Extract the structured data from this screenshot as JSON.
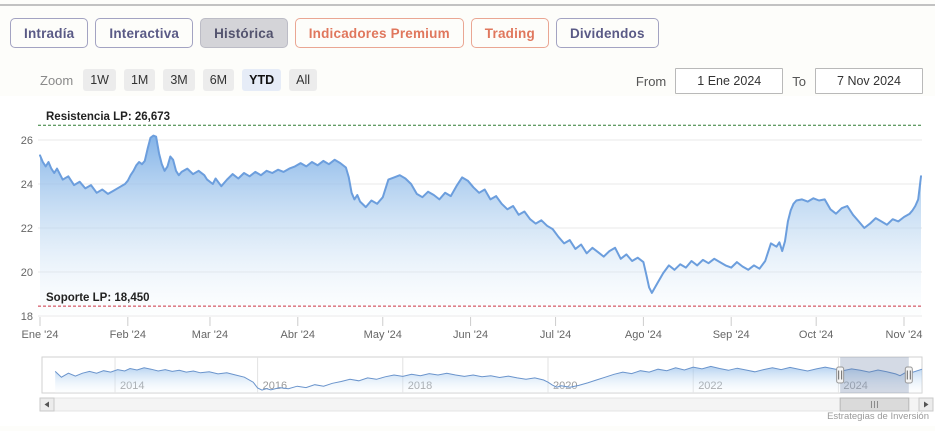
{
  "colors": {
    "accent_purple": "#5a5a86",
    "accent_salmon": "#e0775d",
    "active_tab_bg": "#d4d4d8",
    "ytd_active_bg": "#e6ecf7",
    "price_line": "#6c9edd",
    "navigator_line": "#6a94cc",
    "resistance_green": "#2f7d32",
    "support_red": "#cc3344"
  },
  "tabs": [
    {
      "label": "Intradía",
      "variant": "default",
      "active": false
    },
    {
      "label": "Interactiva",
      "variant": "default",
      "active": false
    },
    {
      "label": "Histórica",
      "variant": "default",
      "active": true
    },
    {
      "label": "Indicadores Premium",
      "variant": "premium",
      "active": false
    },
    {
      "label": "Trading",
      "variant": "premium",
      "active": false
    },
    {
      "label": "Dividendos",
      "variant": "default",
      "active": false
    }
  ],
  "zoom_controls": {
    "label": "Zoom",
    "active": "YTD",
    "buttons": [
      "1W",
      "1M",
      "3M",
      "6M",
      "YTD",
      "All"
    ]
  },
  "date_range": {
    "from_label": "From",
    "from_value": "1 Ene 2024",
    "to_label": "To",
    "to_value": "7 Nov 2024"
  },
  "footer": {
    "credit": "Estrategias de Inversión"
  },
  "chart_data": [
    {
      "type": "area",
      "name": "price-history-ytd-2024",
      "title": "",
      "x_unit": "day_of_2024 (0 = 1 Ene 2024, 311 = 7 Nov 2024)",
      "ylim": [
        18,
        27.3
      ],
      "yticks": [
        18,
        20,
        22,
        24,
        26
      ],
      "grid": true,
      "legend": "none",
      "line_color": "#6c9edd",
      "month_ticks": {
        "days": [
          0,
          31,
          60,
          91,
          121,
          152,
          182,
          213,
          244,
          274,
          305
        ],
        "labels": [
          "Ene '24",
          "Feb '24",
          "Mar '24",
          "Abr '24",
          "May '24",
          "Jun '24",
          "Jul '24",
          "Ago '24",
          "Sep '24",
          "Oct '24",
          "Nov '24"
        ]
      },
      "annotations": [
        {
          "name": "resistance",
          "type": "hline",
          "value": 26.673,
          "label": "Resistencia LP: 26,673",
          "color": "#2f7d32",
          "style": "dotted"
        },
        {
          "name": "support",
          "type": "hline",
          "value": 18.45,
          "label": "Soporte LP: 18,450",
          "color": "#cc3344",
          "style": "dotted"
        }
      ],
      "points": [
        [
          0,
          25.3
        ],
        [
          1,
          25.0
        ],
        [
          2,
          24.8
        ],
        [
          3,
          25.0
        ],
        [
          4,
          24.7
        ],
        [
          5,
          24.5
        ],
        [
          6,
          24.7
        ],
        [
          8,
          24.2
        ],
        [
          10,
          24.35
        ],
        [
          12,
          23.95
        ],
        [
          14,
          24.1
        ],
        [
          16,
          23.8
        ],
        [
          18,
          23.95
        ],
        [
          20,
          23.6
        ],
        [
          22,
          23.75
        ],
        [
          24,
          23.55
        ],
        [
          26,
          23.7
        ],
        [
          28,
          23.85
        ],
        [
          30,
          24.0
        ],
        [
          31,
          24.15
        ],
        [
          32,
          24.4
        ],
        [
          33,
          24.6
        ],
        [
          34,
          24.85
        ],
        [
          35,
          25.0
        ],
        [
          36,
          24.9
        ],
        [
          37,
          25.05
        ],
        [
          38,
          25.6
        ],
        [
          39,
          26.1
        ],
        [
          40,
          26.2
        ],
        [
          41,
          26.15
        ],
        [
          42,
          25.4
        ],
        [
          43,
          24.9
        ],
        [
          44,
          24.6
        ],
        [
          45,
          24.8
        ],
        [
          46,
          25.25
        ],
        [
          47,
          25.1
        ],
        [
          48,
          24.6
        ],
        [
          49,
          24.4
        ],
        [
          50,
          24.55
        ],
        [
          52,
          24.7
        ],
        [
          54,
          24.45
        ],
        [
          56,
          24.6
        ],
        [
          58,
          24.4
        ],
        [
          59,
          24.2
        ],
        [
          61,
          24.0
        ],
        [
          62,
          24.25
        ],
        [
          64,
          23.9
        ],
        [
          66,
          24.2
        ],
        [
          68,
          24.45
        ],
        [
          70,
          24.25
        ],
        [
          72,
          24.5
        ],
        [
          74,
          24.35
        ],
        [
          76,
          24.55
        ],
        [
          78,
          24.4
        ],
        [
          80,
          24.6
        ],
        [
          82,
          24.5
        ],
        [
          84,
          24.65
        ],
        [
          86,
          24.55
        ],
        [
          88,
          24.7
        ],
        [
          90,
          24.8
        ],
        [
          92,
          24.95
        ],
        [
          94,
          24.8
        ],
        [
          96,
          25.0
        ],
        [
          98,
          24.85
        ],
        [
          100,
          25.05
        ],
        [
          102,
          24.9
        ],
        [
          104,
          25.1
        ],
        [
          106,
          24.95
        ],
        [
          108,
          24.75
        ],
        [
          109,
          24.3
        ],
        [
          110,
          23.6
        ],
        [
          111,
          23.3
        ],
        [
          112,
          23.5
        ],
        [
          113,
          23.2
        ],
        [
          115,
          22.95
        ],
        [
          117,
          23.25
        ],
        [
          119,
          23.1
        ],
        [
          121,
          23.4
        ],
        [
          123,
          24.2
        ],
        [
          125,
          24.3
        ],
        [
          127,
          24.4
        ],
        [
          129,
          24.25
        ],
        [
          131,
          24.0
        ],
        [
          133,
          23.55
        ],
        [
          135,
          23.4
        ],
        [
          137,
          23.65
        ],
        [
          139,
          23.5
        ],
        [
          141,
          23.3
        ],
        [
          143,
          23.6
        ],
        [
          145,
          23.45
        ],
        [
          147,
          23.9
        ],
        [
          149,
          24.3
        ],
        [
          151,
          24.15
        ],
        [
          153,
          23.85
        ],
        [
          155,
          23.6
        ],
        [
          157,
          23.75
        ],
        [
          159,
          23.3
        ],
        [
          161,
          23.45
        ],
        [
          163,
          23.1
        ],
        [
          165,
          22.85
        ],
        [
          167,
          23.0
        ],
        [
          169,
          22.6
        ],
        [
          171,
          22.75
        ],
        [
          173,
          22.4
        ],
        [
          175,
          22.2
        ],
        [
          177,
          22.35
        ],
        [
          179,
          22.1
        ],
        [
          181,
          21.95
        ],
        [
          183,
          21.6
        ],
        [
          185,
          21.3
        ],
        [
          187,
          21.45
        ],
        [
          189,
          21.05
        ],
        [
          191,
          21.25
        ],
        [
          193,
          20.85
        ],
        [
          195,
          21.1
        ],
        [
          197,
          20.9
        ],
        [
          199,
          20.7
        ],
        [
          201,
          20.95
        ],
        [
          203,
          21.1
        ],
        [
          205,
          20.6
        ],
        [
          207,
          20.8
        ],
        [
          209,
          20.5
        ],
        [
          211,
          20.65
        ],
        [
          213,
          20.45
        ],
        [
          214,
          19.9
        ],
        [
          215,
          19.3
        ],
        [
          216,
          19.05
        ],
        [
          218,
          19.5
        ],
        [
          220,
          19.95
        ],
        [
          222,
          20.3
        ],
        [
          224,
          20.1
        ],
        [
          226,
          20.35
        ],
        [
          228,
          20.2
        ],
        [
          230,
          20.5
        ],
        [
          232,
          20.3
        ],
        [
          234,
          20.55
        ],
        [
          236,
          20.4
        ],
        [
          238,
          20.6
        ],
        [
          240,
          20.45
        ],
        [
          242,
          20.3
        ],
        [
          244,
          20.2
        ],
        [
          246,
          20.45
        ],
        [
          248,
          20.25
        ],
        [
          250,
          20.1
        ],
        [
          252,
          20.3
        ],
        [
          254,
          20.15
        ],
        [
          256,
          20.5
        ],
        [
          258,
          21.3
        ],
        [
          260,
          21.15
        ],
        [
          261,
          21.35
        ],
        [
          262,
          20.95
        ],
        [
          263,
          21.4
        ],
        [
          264,
          22.3
        ],
        [
          265,
          22.8
        ],
        [
          266,
          23.1
        ],
        [
          267,
          23.25
        ],
        [
          269,
          23.3
        ],
        [
          271,
          23.2
        ],
        [
          273,
          23.35
        ],
        [
          275,
          23.25
        ],
        [
          277,
          23.3
        ],
        [
          279,
          22.85
        ],
        [
          281,
          22.65
        ],
        [
          283,
          22.9
        ],
        [
          285,
          23.0
        ],
        [
          287,
          22.6
        ],
        [
          289,
          22.3
        ],
        [
          291,
          22.0
        ],
        [
          293,
          22.2
        ],
        [
          295,
          22.45
        ],
        [
          297,
          22.3
        ],
        [
          299,
          22.15
        ],
        [
          301,
          22.4
        ],
        [
          303,
          22.3
        ],
        [
          305,
          22.5
        ],
        [
          307,
          22.65
        ],
        [
          308,
          22.8
        ],
        [
          309,
          23.0
        ],
        [
          310,
          23.3
        ],
        [
          311,
          24.35
        ]
      ]
    },
    {
      "type": "area",
      "name": "navigator-full-history",
      "x_unit": "fraction_of_navigator_width (2013-2024)",
      "y_unit": "relative_height_0_to_1",
      "line_color": "#6a94cc",
      "year_ticks": {
        "fracs": [
          0.083,
          0.245,
          0.41,
          0.575,
          0.74,
          0.905
        ],
        "labels": [
          "2014",
          "2016",
          "2018",
          "2020",
          "2022",
          "2024"
        ]
      },
      "selection": [
        0.907,
        0.985
      ],
      "points": [
        [
          0.015,
          0.6
        ],
        [
          0.022,
          0.44
        ],
        [
          0.03,
          0.55
        ],
        [
          0.038,
          0.47
        ],
        [
          0.046,
          0.55
        ],
        [
          0.054,
          0.6
        ],
        [
          0.062,
          0.55
        ],
        [
          0.07,
          0.62
        ],
        [
          0.078,
          0.58
        ],
        [
          0.086,
          0.65
        ],
        [
          0.094,
          0.61
        ],
        [
          0.1,
          0.68
        ],
        [
          0.108,
          0.64
        ],
        [
          0.116,
          0.7
        ],
        [
          0.124,
          0.66
        ],
        [
          0.132,
          0.61
        ],
        [
          0.14,
          0.65
        ],
        [
          0.148,
          0.6
        ],
        [
          0.156,
          0.63
        ],
        [
          0.164,
          0.58
        ],
        [
          0.172,
          0.61
        ],
        [
          0.18,
          0.56
        ],
        [
          0.19,
          0.59
        ],
        [
          0.2,
          0.53
        ],
        [
          0.21,
          0.56
        ],
        [
          0.22,
          0.5
        ],
        [
          0.23,
          0.44
        ],
        [
          0.24,
          0.3
        ],
        [
          0.245,
          0.14
        ],
        [
          0.25,
          0.08
        ],
        [
          0.255,
          0.12
        ],
        [
          0.26,
          0.09
        ],
        [
          0.27,
          0.15
        ],
        [
          0.28,
          0.12
        ],
        [
          0.29,
          0.19
        ],
        [
          0.3,
          0.15
        ],
        [
          0.31,
          0.23
        ],
        [
          0.32,
          0.19
        ],
        [
          0.33,
          0.27
        ],
        [
          0.34,
          0.32
        ],
        [
          0.35,
          0.38
        ],
        [
          0.36,
          0.34
        ],
        [
          0.37,
          0.42
        ],
        [
          0.38,
          0.38
        ],
        [
          0.39,
          0.45
        ],
        [
          0.4,
          0.5
        ],
        [
          0.41,
          0.46
        ],
        [
          0.42,
          0.52
        ],
        [
          0.43,
          0.48
        ],
        [
          0.44,
          0.54
        ],
        [
          0.45,
          0.5
        ],
        [
          0.46,
          0.55
        ],
        [
          0.47,
          0.5
        ],
        [
          0.48,
          0.46
        ],
        [
          0.49,
          0.5
        ],
        [
          0.5,
          0.45
        ],
        [
          0.51,
          0.48
        ],
        [
          0.52,
          0.43
        ],
        [
          0.53,
          0.47
        ],
        [
          0.54,
          0.42
        ],
        [
          0.55,
          0.38
        ],
        [
          0.56,
          0.42
        ],
        [
          0.57,
          0.36
        ],
        [
          0.575,
          0.3
        ],
        [
          0.58,
          0.22
        ],
        [
          0.585,
          0.16
        ],
        [
          0.59,
          0.2
        ],
        [
          0.6,
          0.16
        ],
        [
          0.61,
          0.21
        ],
        [
          0.62,
          0.28
        ],
        [
          0.63,
          0.36
        ],
        [
          0.64,
          0.44
        ],
        [
          0.65,
          0.52
        ],
        [
          0.66,
          0.58
        ],
        [
          0.67,
          0.54
        ],
        [
          0.68,
          0.62
        ],
        [
          0.69,
          0.58
        ],
        [
          0.7,
          0.66
        ],
        [
          0.71,
          0.62
        ],
        [
          0.72,
          0.7
        ],
        [
          0.73,
          0.64
        ],
        [
          0.74,
          0.72
        ],
        [
          0.75,
          0.67
        ],
        [
          0.76,
          0.74
        ],
        [
          0.77,
          0.68
        ],
        [
          0.78,
          0.63
        ],
        [
          0.79,
          0.69
        ],
        [
          0.8,
          0.64
        ],
        [
          0.81,
          0.59
        ],
        [
          0.82,
          0.65
        ],
        [
          0.83,
          0.7
        ],
        [
          0.84,
          0.65
        ],
        [
          0.85,
          0.71
        ],
        [
          0.86,
          0.66
        ],
        [
          0.87,
          0.61
        ],
        [
          0.88,
          0.67
        ],
        [
          0.89,
          0.72
        ],
        [
          0.9,
          0.67
        ],
        [
          0.91,
          0.62
        ],
        [
          0.92,
          0.67
        ],
        [
          0.93,
          0.63
        ],
        [
          0.94,
          0.58
        ],
        [
          0.95,
          0.64
        ],
        [
          0.96,
          0.59
        ],
        [
          0.97,
          0.53
        ],
        [
          0.975,
          0.48
        ],
        [
          0.98,
          0.55
        ],
        [
          0.985,
          0.62
        ],
        [
          0.99,
          0.58
        ],
        [
          1.0,
          0.66
        ]
      ]
    }
  ]
}
